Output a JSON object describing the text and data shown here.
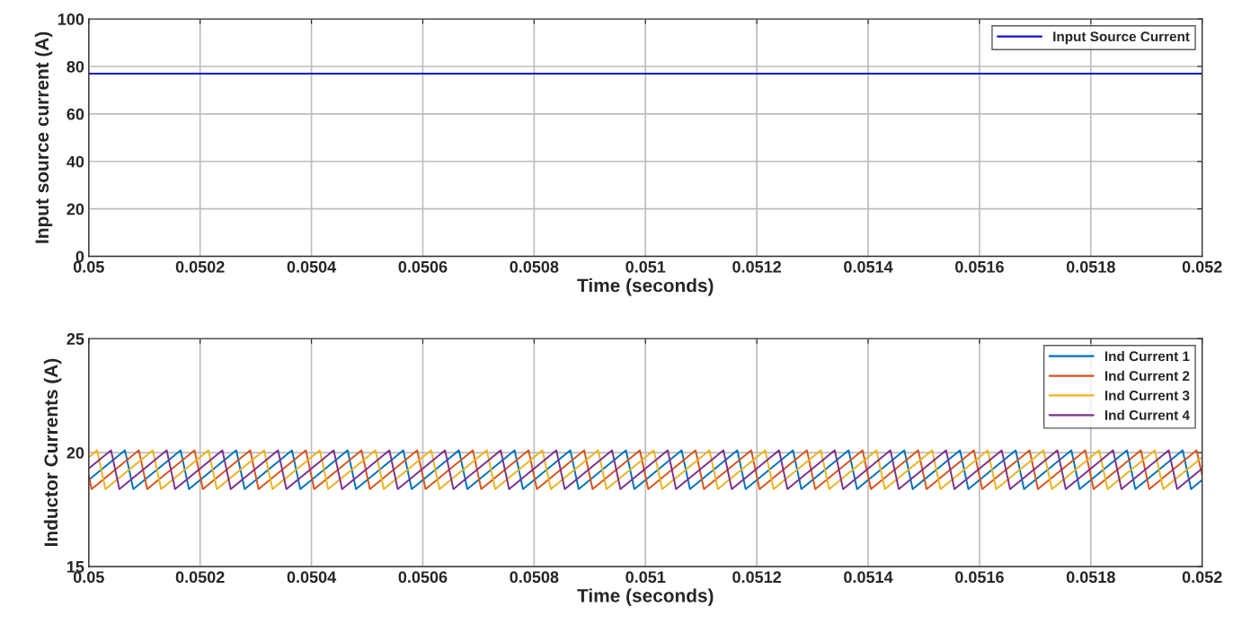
{
  "chart_data": [
    {
      "type": "line",
      "xlabel": "Time (seconds)",
      "ylabel": "Input source current (A)",
      "xlim": [
        0.05,
        0.052
      ],
      "xticks": [
        0.05,
        0.0502,
        0.0504,
        0.0506,
        0.0508,
        0.051,
        0.0512,
        0.0514,
        0.0516,
        0.0518,
        0.052
      ],
      "ylim": [
        0,
        100
      ],
      "yticks": [
        0,
        20,
        40,
        60,
        80,
        100
      ],
      "grid": true,
      "legend": "top right",
      "series": [
        {
          "name": "Input Source Current",
          "color": "#1010d0",
          "x": [
            0.05,
            0.052
          ],
          "values": [
            77,
            77
          ]
        }
      ]
    },
    {
      "type": "line",
      "xlabel": "Time (seconds)",
      "ylabel": "Inductor Currents (A)",
      "xlim": [
        0.05,
        0.052
      ],
      "xticks": [
        0.05,
        0.0502,
        0.0504,
        0.0506,
        0.0508,
        0.051,
        0.0512,
        0.0514,
        0.0516,
        0.0518,
        0.052
      ],
      "ylim": [
        15,
        25
      ],
      "yticks": [
        15,
        20,
        25
      ],
      "grid": true,
      "legend": "top right",
      "series": [
        {
          "name": "Ind Current 1",
          "color": "#0072bd",
          "x": [
            0.05,
            0.050065,
            0.05008,
            0.050165,
            0.05018,
            0.050265,
            0.05028,
            0.050365,
            0.05038,
            0.050465,
            0.05048,
            0.050565,
            0.05058,
            0.050665,
            0.05068,
            0.050765,
            0.05078,
            0.050865,
            0.05088,
            0.050965,
            0.05098,
            0.051065,
            0.05108,
            0.051165,
            0.05118,
            0.051265,
            0.05128,
            0.051365,
            0.05138,
            0.051465,
            0.05148,
            0.051565,
            0.05158,
            0.051665,
            0.05168,
            0.051765,
            0.05178,
            0.051865,
            0.05188,
            0.051965,
            0.05198,
            0.052
          ],
          "values": [
            18.8,
            20.1,
            18.4,
            20.1,
            18.4,
            20.1,
            18.4,
            20.1,
            18.4,
            20.1,
            18.4,
            20.1,
            18.4,
            20.1,
            18.4,
            20.1,
            18.4,
            20.1,
            18.4,
            20.1,
            18.4,
            20.1,
            18.4,
            20.1,
            18.4,
            20.1,
            18.4,
            20.1,
            18.4,
            20.1,
            18.4,
            20.1,
            18.4,
            20.1,
            18.4,
            20.1,
            18.4,
            20.1,
            18.4,
            20.1,
            18.4,
            18.8
          ]
        },
        {
          "name": "Ind Current 2",
          "color": "#d95319",
          "x": [
            0.05,
            0.050005,
            0.05009,
            0.050105,
            0.05019,
            0.050205,
            0.05029,
            0.050305,
            0.05039,
            0.050405,
            0.05049,
            0.050505,
            0.05059,
            0.050605,
            0.05069,
            0.050705,
            0.05079,
            0.050805,
            0.05089,
            0.050905,
            0.05099,
            0.051005,
            0.05109,
            0.051105,
            0.05119,
            0.051205,
            0.05129,
            0.051305,
            0.05139,
            0.051405,
            0.05149,
            0.051505,
            0.05159,
            0.051605,
            0.05169,
            0.051705,
            0.05179,
            0.051805,
            0.05189,
            0.051905,
            0.05199,
            0.052
          ],
          "values": [
            19.0,
            18.4,
            20.1,
            18.4,
            20.1,
            18.4,
            20.1,
            18.4,
            20.1,
            18.4,
            20.1,
            18.4,
            20.1,
            18.4,
            20.1,
            18.4,
            20.1,
            18.4,
            20.1,
            18.4,
            20.1,
            18.4,
            20.1,
            18.4,
            20.1,
            18.4,
            20.1,
            18.4,
            20.1,
            18.4,
            20.1,
            18.4,
            20.1,
            18.4,
            20.1,
            18.4,
            20.1,
            18.4,
            20.1,
            18.4,
            20.1,
            19.0
          ]
        },
        {
          "name": "Ind Current 3",
          "color": "#edb120",
          "x": [
            0.05,
            0.050015,
            0.05003,
            0.050115,
            0.05013,
            0.050215,
            0.05023,
            0.050315,
            0.05033,
            0.050415,
            0.05043,
            0.050515,
            0.05053,
            0.050615,
            0.05063,
            0.050715,
            0.05073,
            0.050815,
            0.05083,
            0.050915,
            0.05093,
            0.051015,
            0.05103,
            0.051115,
            0.05113,
            0.051215,
            0.05123,
            0.051315,
            0.05133,
            0.051415,
            0.05143,
            0.051515,
            0.05153,
            0.051615,
            0.05163,
            0.051715,
            0.05173,
            0.051815,
            0.05183,
            0.051915,
            0.05193,
            0.052
          ],
          "values": [
            19.8,
            20.1,
            18.4,
            20.1,
            18.4,
            20.1,
            18.4,
            20.1,
            18.4,
            20.1,
            18.4,
            20.1,
            18.4,
            20.1,
            18.4,
            20.1,
            18.4,
            20.1,
            18.4,
            20.1,
            18.4,
            20.1,
            18.4,
            20.1,
            18.4,
            20.1,
            18.4,
            20.1,
            18.4,
            20.1,
            18.4,
            20.1,
            18.4,
            20.1,
            18.4,
            20.1,
            18.4,
            20.1,
            18.4,
            20.1,
            18.4,
            19.8
          ]
        },
        {
          "name": "Ind Current 4",
          "color": "#7e2f8e",
          "x": [
            0.05,
            0.05004,
            0.050055,
            0.05014,
            0.050155,
            0.05024,
            0.050255,
            0.05034,
            0.050355,
            0.05044,
            0.050455,
            0.05054,
            0.050555,
            0.05064,
            0.050655,
            0.05074,
            0.050755,
            0.05084,
            0.050855,
            0.05094,
            0.050955,
            0.05104,
            0.051055,
            0.05114,
            0.051155,
            0.05124,
            0.051255,
            0.05134,
            0.051355,
            0.05144,
            0.051455,
            0.05154,
            0.051555,
            0.05164,
            0.051655,
            0.05174,
            0.051755,
            0.05184,
            0.051855,
            0.05194,
            0.051955,
            0.052
          ],
          "values": [
            19.3,
            20.1,
            18.4,
            20.1,
            18.4,
            20.1,
            18.4,
            20.1,
            18.4,
            20.1,
            18.4,
            20.1,
            18.4,
            20.1,
            18.4,
            20.1,
            18.4,
            20.1,
            18.4,
            20.1,
            18.4,
            20.1,
            18.4,
            20.1,
            18.4,
            20.1,
            18.4,
            20.1,
            18.4,
            20.1,
            18.4,
            20.1,
            18.4,
            20.1,
            18.4,
            20.1,
            18.4,
            20.1,
            18.4,
            20.1,
            18.4,
            19.3
          ]
        }
      ]
    }
  ]
}
